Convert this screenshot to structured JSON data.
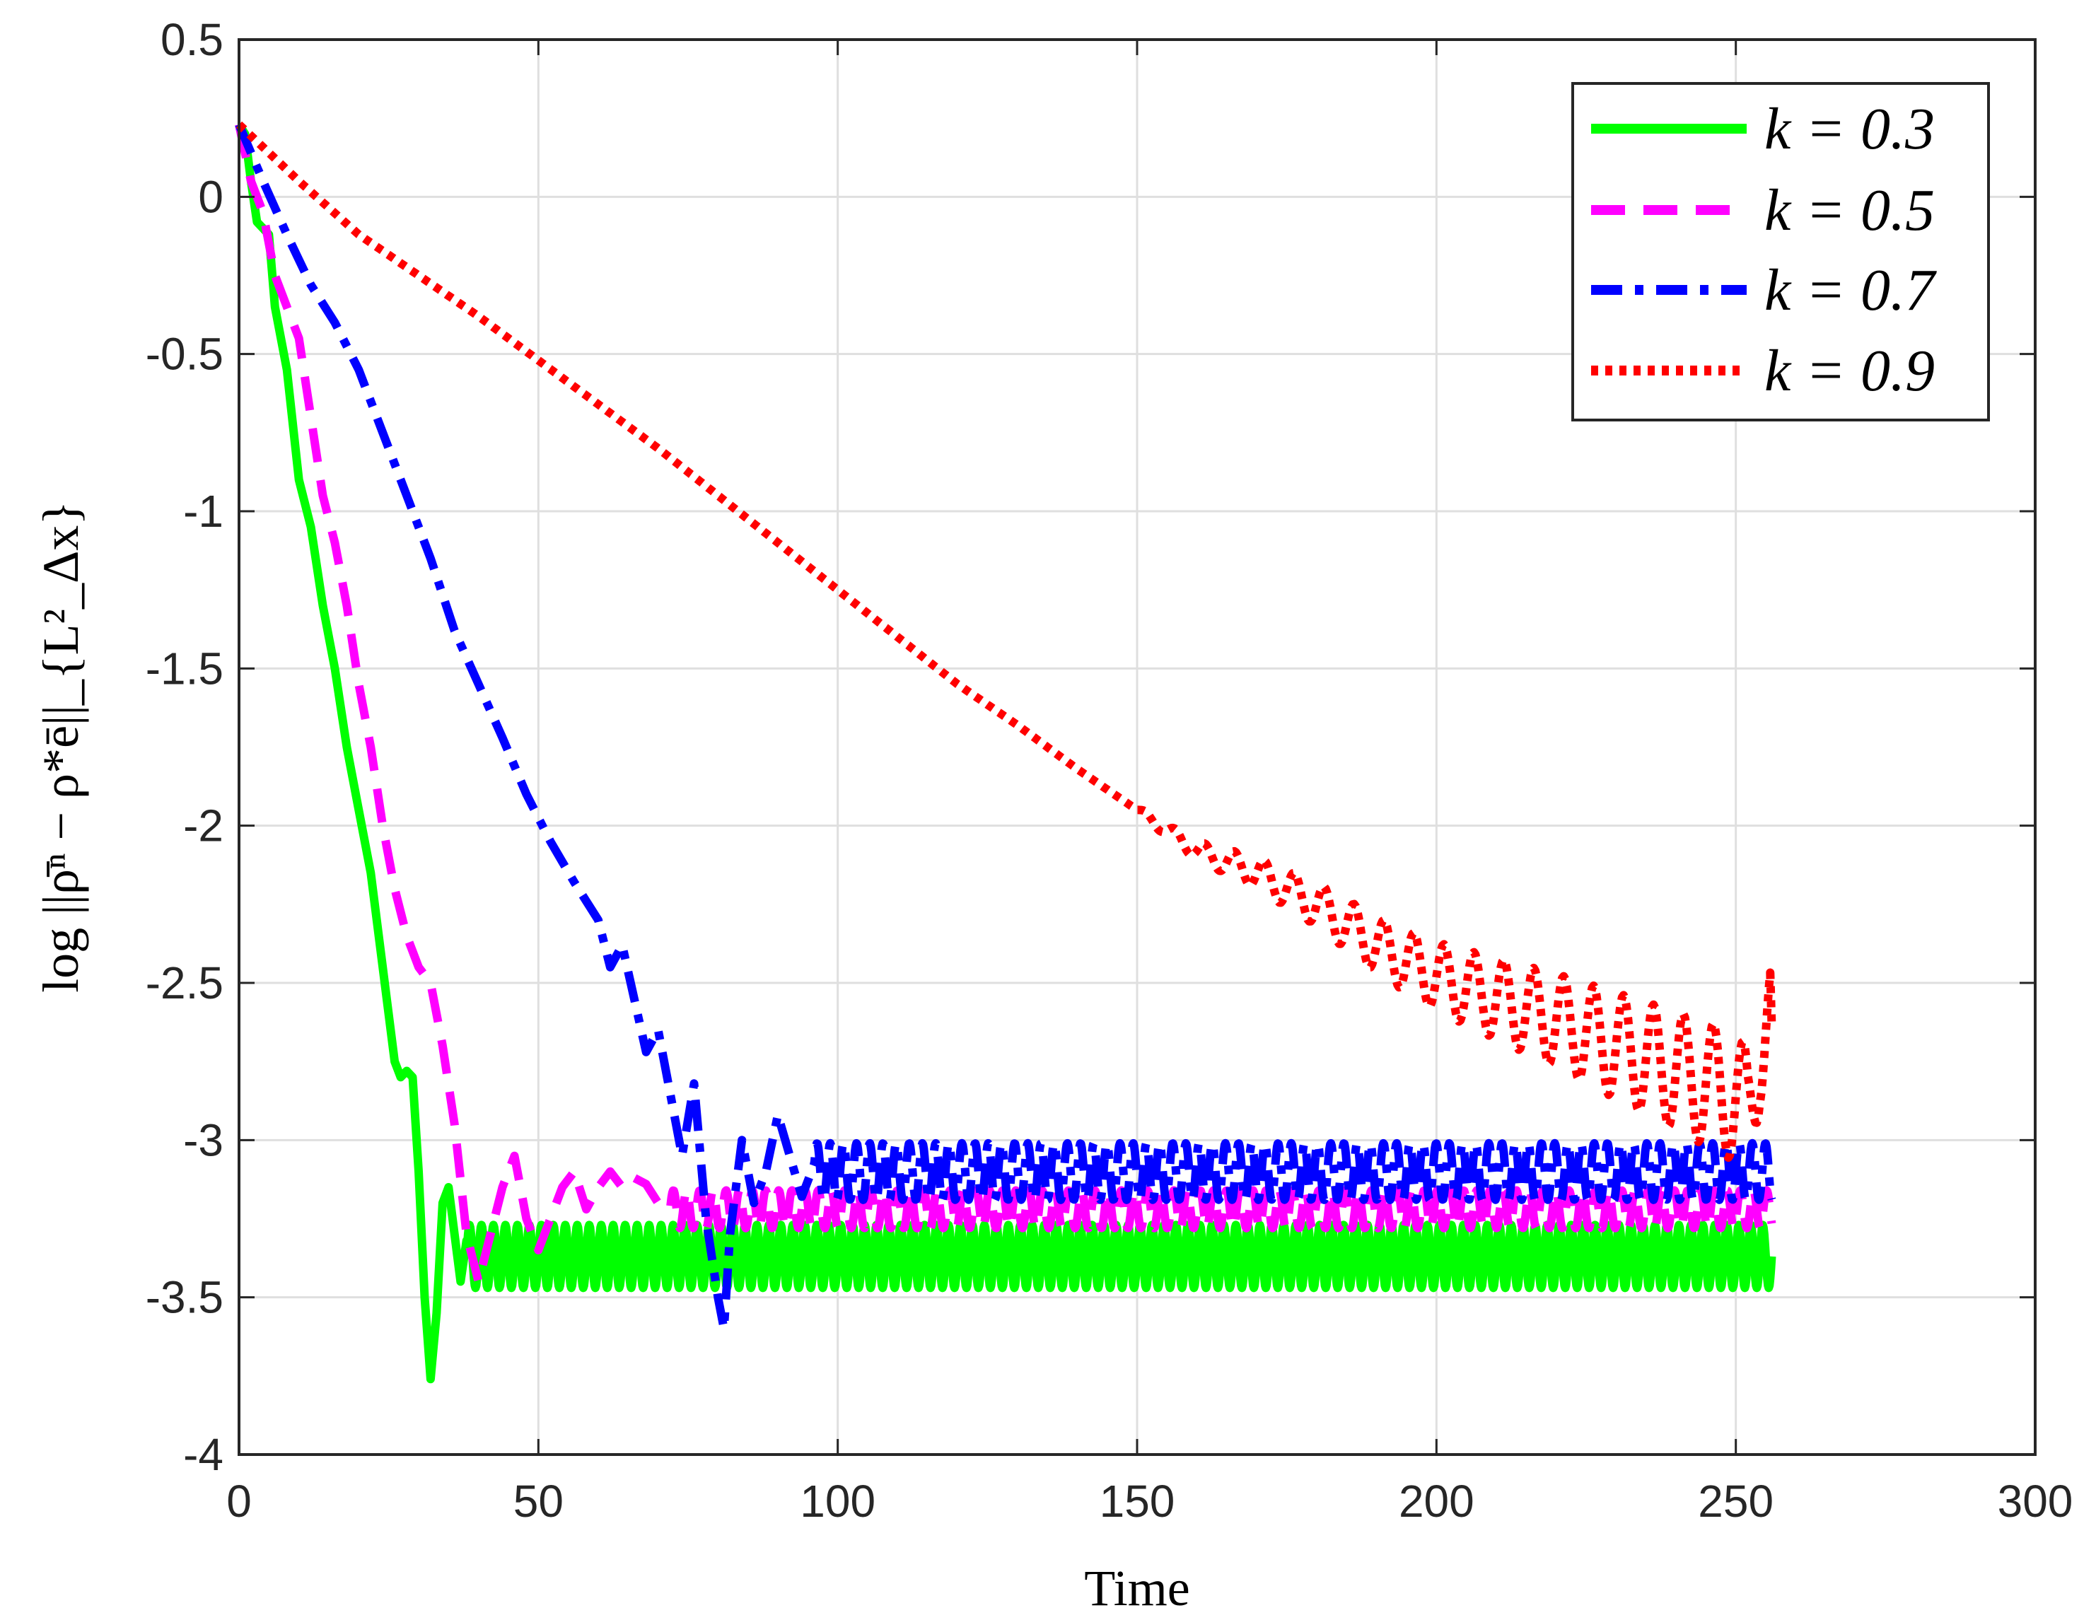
{
  "chart_data": {
    "type": "line",
    "title": "",
    "xlabel": "Time",
    "ylabel": "log ||ρ̄ⁿ − ρ*ē||_{L²_Δx}",
    "xlim": [
      0,
      300
    ],
    "ylim": [
      -4,
      0.5
    ],
    "xticks": [
      "0",
      "50",
      "100",
      "150",
      "200",
      "250",
      "300"
    ],
    "yticks": [
      "0.5",
      "0",
      "-0.5",
      "-1",
      "-1.5",
      "-2",
      "-2.5",
      "-3",
      "-3.5",
      "-4"
    ],
    "grid": true,
    "legend_position": "top-right",
    "series": [
      {
        "name": "k = 0.3",
        "color": "#00ff00",
        "style": "solid",
        "points": [
          [
            0,
            0.23
          ],
          [
            1,
            0.2
          ],
          [
            2,
            0.05
          ],
          [
            3,
            -0.08
          ],
          [
            4,
            -0.1
          ],
          [
            5,
            -0.12
          ],
          [
            6,
            -0.35
          ],
          [
            8,
            -0.55
          ],
          [
            10,
            -0.9
          ],
          [
            12,
            -1.05
          ],
          [
            14,
            -1.3
          ],
          [
            16,
            -1.5
          ],
          [
            18,
            -1.75
          ],
          [
            20,
            -1.95
          ],
          [
            22,
            -2.15
          ],
          [
            24,
            -2.45
          ],
          [
            26,
            -2.75
          ],
          [
            27,
            -2.8
          ],
          [
            28,
            -2.78
          ],
          [
            29,
            -2.8
          ],
          [
            30,
            -3.1
          ],
          [
            31,
            -3.5
          ],
          [
            32,
            -3.76
          ],
          [
            33,
            -3.55
          ],
          [
            34,
            -3.2
          ],
          [
            35,
            -3.15
          ],
          [
            36,
            -3.3
          ],
          [
            37,
            -3.45
          ],
          [
            38,
            -3.32
          ]
        ],
        "osc": {
          "x_start": 38,
          "x_end": 256,
          "center": -3.37,
          "amplitude": 0.1,
          "period": 2.0
        }
      },
      {
        "name": "k = 0.5",
        "color": "#ff00ff",
        "style": "dashed",
        "points": [
          [
            0,
            0.23
          ],
          [
            2,
            0.05
          ],
          [
            4,
            -0.05
          ],
          [
            6,
            -0.25
          ],
          [
            8,
            -0.35
          ],
          [
            10,
            -0.45
          ],
          [
            12,
            -0.7
          ],
          [
            14,
            -0.95
          ],
          [
            16,
            -1.1
          ],
          [
            18,
            -1.3
          ],
          [
            20,
            -1.55
          ],
          [
            22,
            -1.75
          ],
          [
            24,
            -2.0
          ],
          [
            26,
            -2.2
          ],
          [
            28,
            -2.35
          ],
          [
            30,
            -2.45
          ],
          [
            32,
            -2.5
          ],
          [
            34,
            -2.7
          ],
          [
            36,
            -2.95
          ],
          [
            38,
            -3.3
          ],
          [
            40,
            -3.45
          ],
          [
            42,
            -3.3
          ],
          [
            44,
            -3.15
          ],
          [
            46,
            -3.05
          ],
          [
            48,
            -3.25
          ],
          [
            50,
            -3.35
          ],
          [
            52,
            -3.25
          ],
          [
            54,
            -3.15
          ],
          [
            56,
            -3.1
          ],
          [
            58,
            -3.22
          ],
          [
            60,
            -3.15
          ],
          [
            62,
            -3.1
          ],
          [
            64,
            -3.15
          ],
          [
            66,
            -3.12
          ],
          [
            68,
            -3.14
          ],
          [
            70,
            -3.2
          ],
          [
            72,
            -3.22
          ]
        ],
        "osc": {
          "x_start": 72,
          "x_end": 256,
          "center": -3.22,
          "amplitude": 0.06,
          "period": 2.2
        }
      },
      {
        "name": "k = 0.7",
        "color": "#0000ff",
        "style": "dash-dot",
        "points": [
          [
            0,
            0.23
          ],
          [
            4,
            0.05
          ],
          [
            8,
            -0.12
          ],
          [
            12,
            -0.28
          ],
          [
            16,
            -0.4
          ],
          [
            20,
            -0.55
          ],
          [
            24,
            -0.75
          ],
          [
            28,
            -0.95
          ],
          [
            32,
            -1.15
          ],
          [
            36,
            -1.38
          ],
          [
            40,
            -1.55
          ],
          [
            44,
            -1.72
          ],
          [
            48,
            -1.9
          ],
          [
            52,
            -2.05
          ],
          [
            56,
            -2.18
          ],
          [
            60,
            -2.3
          ],
          [
            62,
            -2.45
          ],
          [
            64,
            -2.38
          ],
          [
            66,
            -2.55
          ],
          [
            68,
            -2.72
          ],
          [
            70,
            -2.65
          ],
          [
            72,
            -2.85
          ],
          [
            74,
            -3.05
          ],
          [
            76,
            -2.82
          ],
          [
            78,
            -3.25
          ],
          [
            80,
            -3.5
          ],
          [
            81,
            -3.6
          ],
          [
            82,
            -3.3
          ],
          [
            84,
            -3.0
          ],
          [
            86,
            -3.2
          ],
          [
            88,
            -3.1
          ],
          [
            90,
            -2.92
          ],
          [
            92,
            -3.05
          ],
          [
            94,
            -3.18
          ],
          [
            96,
            -3.08
          ]
        ],
        "osc": {
          "x_start": 96,
          "x_end": 256,
          "center": -3.1,
          "amplitude": 0.09,
          "period": 2.2
        }
      },
      {
        "name": "k = 0.9",
        "color": "#ff0000",
        "style": "dotted",
        "points": [
          [
            0,
            0.23
          ],
          [
            10,
            0.05
          ],
          [
            20,
            -0.12
          ],
          [
            30,
            -0.25
          ],
          [
            40,
            -0.38
          ],
          [
            50,
            -0.52
          ],
          [
            60,
            -0.66
          ],
          [
            70,
            -0.8
          ],
          [
            80,
            -0.95
          ],
          [
            90,
            -1.1
          ],
          [
            100,
            -1.25
          ],
          [
            110,
            -1.4
          ],
          [
            120,
            -1.55
          ],
          [
            130,
            -1.68
          ],
          [
            140,
            -1.82
          ],
          [
            150,
            -1.95
          ],
          [
            160,
            -2.08
          ],
          [
            170,
            -2.15
          ],
          [
            180,
            -2.25
          ],
          [
            190,
            -2.38
          ],
          [
            200,
            -2.48
          ],
          [
            210,
            -2.55
          ],
          [
            220,
            -2.62
          ],
          [
            230,
            -2.7
          ],
          [
            240,
            -2.78
          ],
          [
            250,
            -2.86
          ],
          [
            252,
            -2.92
          ],
          [
            254,
            -2.68
          ],
          [
            256,
            -2.64
          ]
        ],
        "osc_grow": {
          "x_start": 150,
          "x_end": 256,
          "amp_start": 0.01,
          "amp_end": 0.22,
          "period": 5.0
        }
      }
    ]
  },
  "legend": {
    "k03": "k = 0.3",
    "k05": "k = 0.5",
    "k07": "k = 0.7",
    "k09": "k = 0.9"
  }
}
